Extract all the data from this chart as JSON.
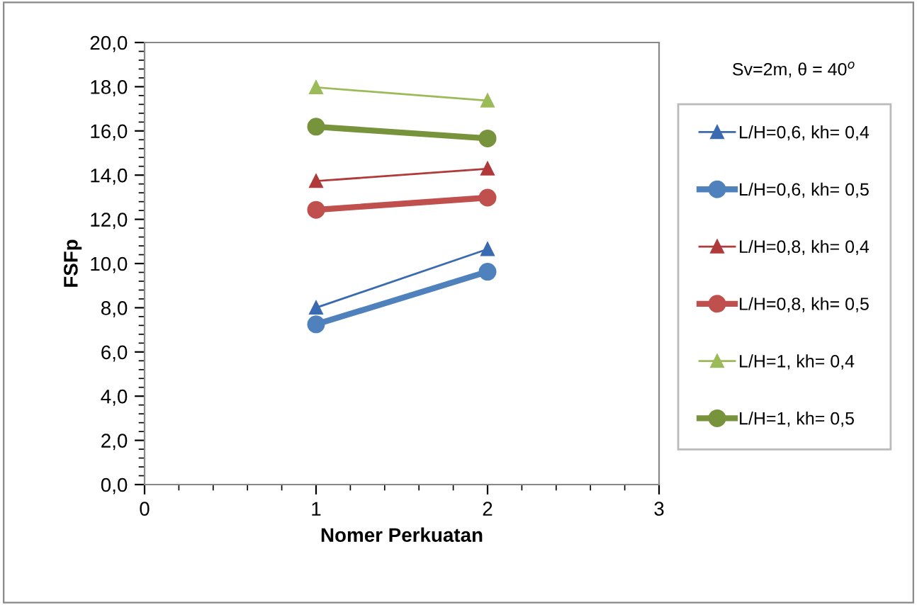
{
  "chart_data": {
    "type": "line",
    "xlabel": "Nomer Perkuatan",
    "ylabel": "FSFp",
    "annotations": [
      "Sv=2m, θ = 40$^{o}$"
    ],
    "x": [
      1,
      2
    ],
    "xlim": [
      0,
      3
    ],
    "xticks": [
      0,
      1,
      2,
      3
    ],
    "ylim": [
      0,
      20
    ],
    "yticks": [
      {
        "value": 0,
        "label": "0,0"
      },
      {
        "value": 2,
        "label": "2,0"
      },
      {
        "value": 4,
        "label": "4,0"
      },
      {
        "value": 6,
        "label": "6,0"
      },
      {
        "value": 8,
        "label": "8,0"
      },
      {
        "value": 10,
        "label": "10,0"
      },
      {
        "value": 12,
        "label": "12,0"
      },
      {
        "value": 14,
        "label": "14,0"
      },
      {
        "value": 16,
        "label": "16,0"
      },
      {
        "value": 18,
        "label": "18,0"
      },
      {
        "value": 20,
        "label": "20,0"
      }
    ],
    "grid": false,
    "legend": "right",
    "line_style": "solid",
    "series": [
      {
        "name": "L/H=0,6, kh= 0,4",
        "color": "#3a6ab0",
        "marker": "triangle",
        "values": [
          8.0,
          10.65
        ]
      },
      {
        "name": "L/H=0,6, kh= 0,5",
        "color": "#4f81bd",
        "marker": "circle",
        "values": [
          7.25,
          9.63
        ]
      },
      {
        "name": "L/H=0,8, kh= 0,4",
        "color": "#b03a3a",
        "marker": "triangle",
        "values": [
          13.73,
          14.29
        ]
      },
      {
        "name": "L/H=0,8, kh= 0,5",
        "color": "#c0504d",
        "marker": "circle",
        "values": [
          12.43,
          12.98
        ]
      },
      {
        "name": "L/H=1, kh= 0,4",
        "color": "#9bbb59",
        "marker": "triangle",
        "values": [
          17.97,
          17.37
        ]
      },
      {
        "name": "L/H=1, kh= 0,5",
        "color": "#77933c",
        "marker": "circle",
        "values": [
          16.19,
          15.66
        ]
      }
    ]
  }
}
